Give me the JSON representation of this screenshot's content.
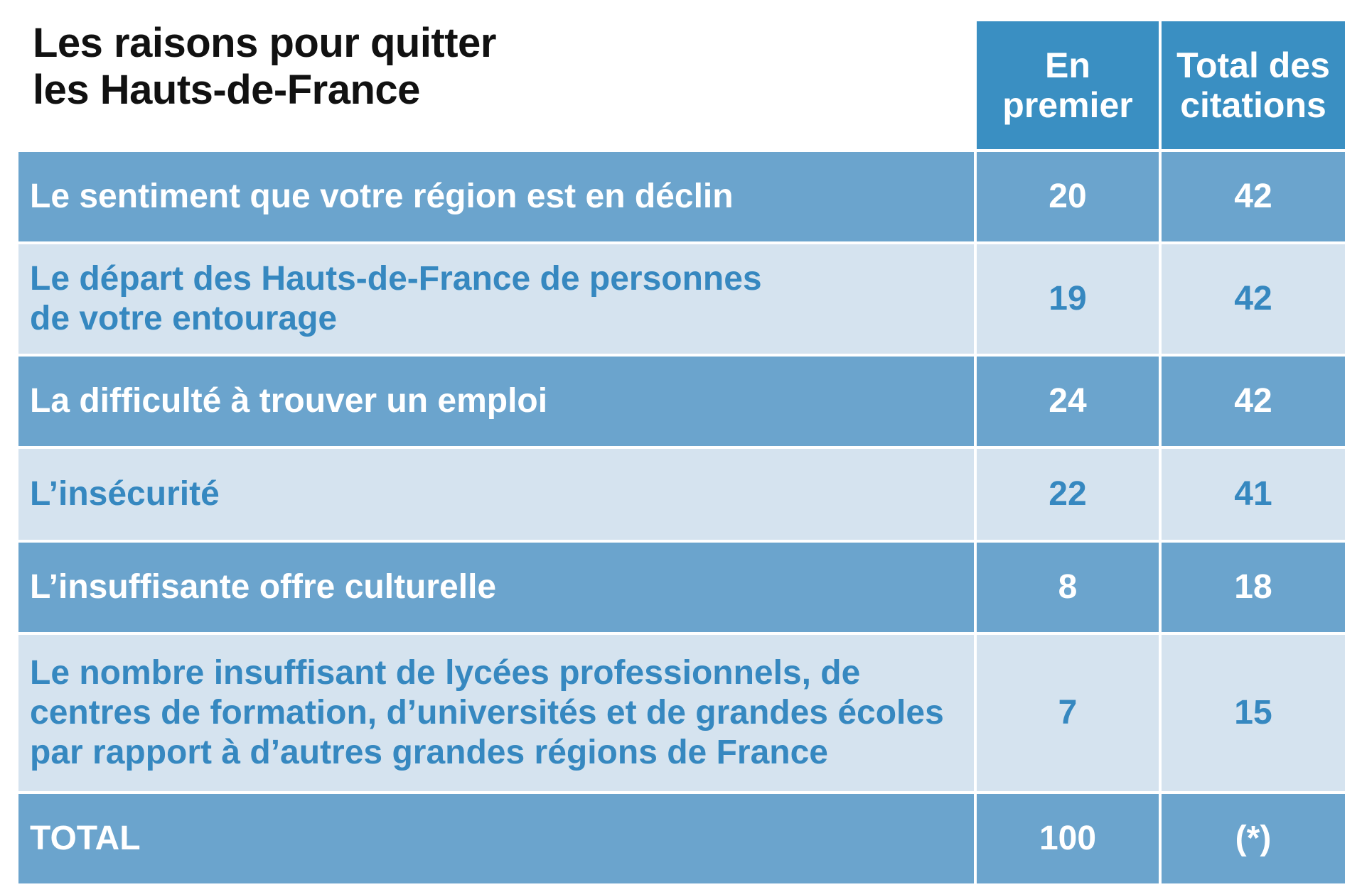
{
  "chart_data": {
    "type": "table",
    "title": [
      "Les raisons pour quitter",
      "les Hauts-de-France"
    ],
    "columns": [
      [
        "En",
        "premier"
      ],
      [
        "Total des",
        "citations"
      ]
    ],
    "rows": [
      {
        "label": [
          "Le sentiment que votre région est en déclin"
        ],
        "values": [
          "20",
          "42"
        ]
      },
      {
        "label": [
          "Le départ des Hauts-de-France de personnes",
          "de votre entourage"
        ],
        "values": [
          "19",
          "42"
        ]
      },
      {
        "label": [
          "La difficulté à trouver un emploi"
        ],
        "values": [
          "24",
          "42"
        ]
      },
      {
        "label": [
          "L’insécurité"
        ],
        "values": [
          "22",
          "41"
        ]
      },
      {
        "label": [
          "L’insuffisante offre culturelle"
        ],
        "values": [
          "8",
          "18"
        ]
      },
      {
        "label": [
          "Le nombre insuffisant de lycées professionnels, de",
          "centres de formation, d’universités et de grandes écoles",
          "par rapport à d’autres grandes régions de France"
        ],
        "values": [
          "7",
          "15"
        ]
      },
      {
        "label": [
          "TOTAL"
        ],
        "values": [
          "100",
          "(*)"
        ]
      }
    ]
  }
}
